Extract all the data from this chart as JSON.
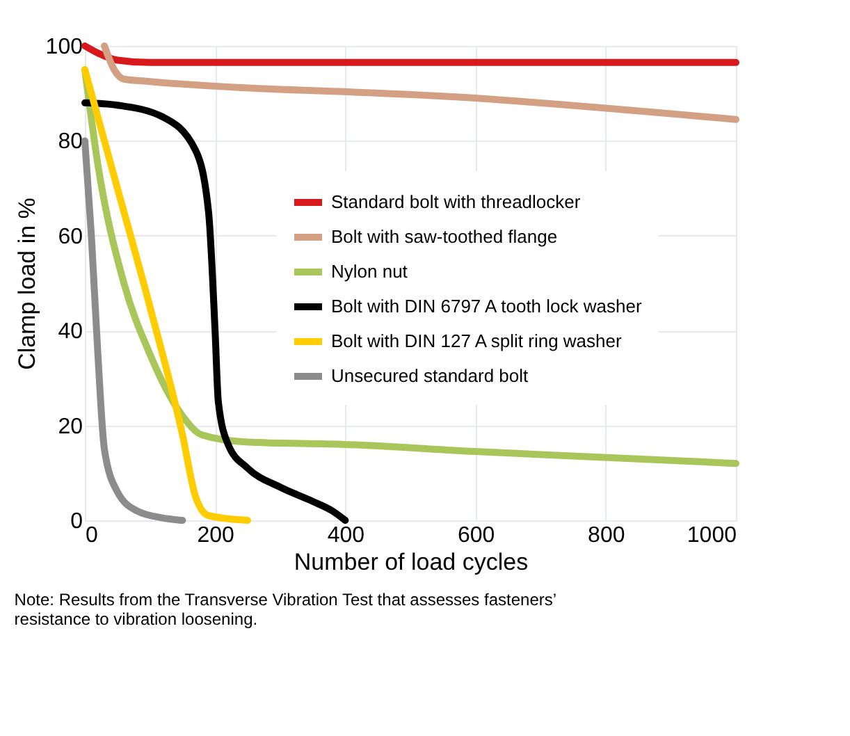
{
  "chart_data": {
    "type": "line",
    "xlabel": "Number of load cycles",
    "ylabel": "Clamp load in %",
    "xlim": [
      0,
      1000
    ],
    "xticks": [
      0,
      200,
      400,
      600,
      800,
      1000
    ],
    "ylim": [
      0,
      100
    ],
    "yticks": [
      0,
      20,
      40,
      60,
      80,
      100
    ],
    "grid": true,
    "legend": "right",
    "marker": "none",
    "line_style": "solid",
    "annotations": [
      "Note: Results from the Transverse Vibration Test that assesses fasteners’ resistance to vibration loosening."
    ],
    "series": [
      {
        "name": "Standard bolt with threadlocker",
        "color": "#d7191c",
        "x": [
          0,
          20,
          50,
          100,
          1000
        ],
        "values": [
          100,
          98.5,
          97,
          96.5,
          96.5
        ]
      },
      {
        "name": "Bolt with saw-toothed flange",
        "color": "#d4a084",
        "x": [
          30,
          45,
          60,
          100,
          600,
          1000
        ],
        "values": [
          100,
          95,
          93,
          92.5,
          89,
          84.5
        ]
      },
      {
        "name": "Nylon nut",
        "color": "#a8c65a",
        "x": [
          0,
          20,
          60,
          100,
          150,
          180,
          250,
          400,
          600,
          1000
        ],
        "values": [
          95,
          75,
          50,
          35,
          22,
          18,
          16.5,
          16,
          14.5,
          12
        ]
      },
      {
        "name": "Bolt with DIN 6797 A tooth lock washer",
        "color": "#000000",
        "x": [
          0,
          50,
          120,
          170,
          190,
          200,
          205,
          220,
          250,
          300,
          350,
          380,
          400
        ],
        "values": [
          88,
          87.5,
          85,
          78,
          65,
          40,
          25,
          16,
          11,
          7,
          4,
          2,
          0
        ]
      },
      {
        "name": "Bolt with DIN 127 A split ring washer",
        "color": "#ffcc00",
        "x": [
          0,
          50,
          100,
          150,
          170,
          190,
          250
        ],
        "values": [
          95,
          70,
          45,
          18,
          5,
          1,
          0
        ]
      },
      {
        "name": "Unsecured standard bolt",
        "color": "#8c8c8c",
        "x": [
          0,
          10,
          20,
          30,
          50,
          80,
          120,
          150
        ],
        "values": [
          80,
          60,
          35,
          15,
          6,
          2,
          0.5,
          0
        ]
      }
    ]
  }
}
